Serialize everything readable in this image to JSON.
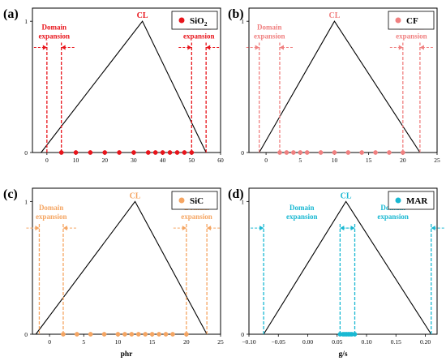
{
  "chart_data": [
    {
      "type": "line",
      "panel_label": "(a)",
      "color": "#E8141B",
      "marker": "circle",
      "legend": {
        "text": "SiO",
        "subscript": "2",
        "placement": "top-right"
      },
      "apex_label": "CL",
      "annotations": [
        "Domain",
        "expansion"
      ],
      "xlim": [
        -5,
        60
      ],
      "ylim": [
        0,
        1.1
      ],
      "x_ticks": [
        0,
        10,
        20,
        30,
        40,
        50,
        60
      ],
      "y_ticks": [
        0,
        1
      ],
      "xlabel": "",
      "membership_triangle": {
        "x": [
          -2,
          33,
          55
        ],
        "y": [
          0,
          1,
          0
        ]
      },
      "domain_lines": [
        0,
        5,
        50,
        55
      ],
      "arrow_y": 0.8,
      "points_x": [
        5,
        10,
        15,
        20,
        25,
        30,
        35,
        37.5,
        40,
        42.5,
        45,
        47.5,
        50
      ],
      "points_y": 0
    },
    {
      "type": "line",
      "panel_label": "(b)",
      "color": "#F08080",
      "marker": "circle",
      "legend": {
        "text": "CF",
        "subscript": "",
        "placement": "top-right"
      },
      "apex_label": "CL",
      "annotations": [
        "Domain",
        "expansion"
      ],
      "xlim": [
        -2.5,
        25
      ],
      "ylim": [
        0,
        1.1
      ],
      "x_ticks": [
        0,
        5,
        10,
        15,
        20,
        25
      ],
      "y_ticks": [
        0,
        1
      ],
      "xlabel": "",
      "membership_triangle": {
        "x": [
          -1,
          10,
          22.5
        ],
        "y": [
          0,
          1,
          0
        ]
      },
      "domain_lines": [
        -1,
        2,
        20,
        22.5
      ],
      "arrow_y": 0.8,
      "points_x": [
        2,
        3,
        4,
        5,
        6,
        8,
        10,
        12,
        14,
        16,
        18,
        20
      ],
      "points_y": 0
    },
    {
      "type": "line",
      "panel_label": "(c)",
      "color": "#F5A562",
      "marker": "circle",
      "legend": {
        "text": "SiC",
        "subscript": "",
        "placement": "top-right"
      },
      "apex_label": "CL",
      "annotations": [
        "Domain",
        "expansion"
      ],
      "xlim": [
        -2.5,
        25
      ],
      "ylim": [
        0,
        1.1
      ],
      "x_ticks": [
        0,
        5,
        10,
        15,
        20,
        25
      ],
      "y_ticks": [
        0,
        1
      ],
      "xlabel": "phr",
      "membership_triangle": {
        "x": [
          -2,
          12.5,
          23
        ],
        "y": [
          0,
          1,
          0
        ]
      },
      "domain_lines": [
        -1.5,
        2,
        20,
        23
      ],
      "arrow_y": 0.8,
      "points_x": [
        2,
        4,
        6,
        8,
        10,
        11,
        12,
        13,
        14,
        15,
        16,
        17,
        18,
        20
      ],
      "points_y": 0
    },
    {
      "type": "line",
      "panel_label": "(d)",
      "color": "#19B8D2",
      "marker": "circle",
      "legend": {
        "text": "MAR",
        "subscript": "",
        "placement": "top-right"
      },
      "apex_label": "CL",
      "annotations": [
        "Domain",
        "expansion"
      ],
      "xlim": [
        -0.1,
        0.22
      ],
      "ylim": [
        0,
        1.1
      ],
      "x_ticks": [
        -0.1,
        -0.05,
        0.0,
        0.05,
        0.1,
        0.15,
        0.2
      ],
      "x_tick_labels": [
        "−0.10",
        "−0.05",
        "0.00",
        "0.05",
        "0.10",
        "0.15",
        "0.20"
      ],
      "y_ticks": [
        0,
        1
      ],
      "xlabel": "g/s",
      "membership_triangle": {
        "x": [
          -0.075,
          0.065,
          0.21
        ],
        "y": [
          0,
          1,
          0
        ]
      },
      "domain_lines": [
        -0.075,
        0.055,
        0.08,
        0.21
      ],
      "arrow_y": 0.8,
      "points_x": [
        0.055,
        0.06,
        0.063,
        0.066,
        0.069,
        0.072,
        0.075,
        0.08
      ],
      "points_y": 0
    }
  ]
}
